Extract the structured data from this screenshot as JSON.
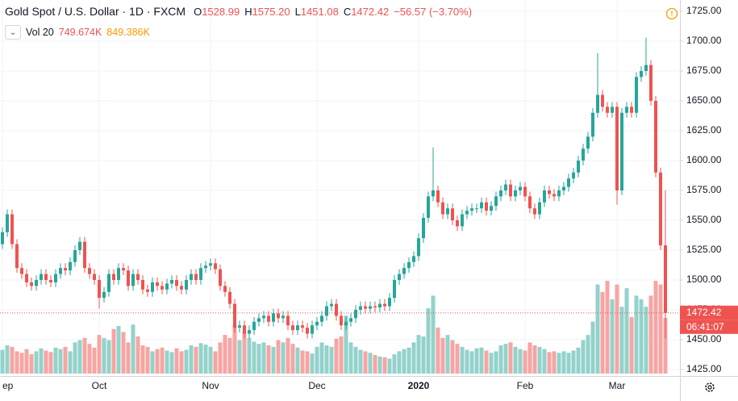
{
  "chart_data": {
    "type": "candlestick",
    "title": "Gold Spot / U.S. Dollar · 1D · FXCM",
    "ohlc_header": [
      {
        "key": "O",
        "value": "1528.99"
      },
      {
        "key": "H",
        "value": "1575.20"
      },
      {
        "key": "L",
        "value": "1451.08"
      },
      {
        "key": "C",
        "value": "1472.42"
      }
    ],
    "change": "−56.57 (−3.70%)",
    "volume_label": "Vol 20",
    "volume_values_header": [
      "749.674K",
      "849.386K"
    ],
    "last_price_label": "1472.42",
    "countdown": "06:41:07",
    "up_color": "#26a69a",
    "down_color": "#ef5350",
    "volume_up_color": "#93d2cb",
    "volume_down_color": "#f6a5a3",
    "grid": true,
    "xlim": [
      -0.5,
      140
    ],
    "xticks": [
      {
        "value": 0,
        "label": "ep"
      },
      {
        "value": 20,
        "label": "Oct"
      },
      {
        "value": 43,
        "label": "Nov"
      },
      {
        "value": 65,
        "label": "Dec"
      },
      {
        "value": 86,
        "label": "2020"
      },
      {
        "value": 108,
        "label": "Feb"
      },
      {
        "value": 127,
        "label": "Mar"
      }
    ],
    "ylim": [
      1425,
      1725
    ],
    "yticks": [
      {
        "value": 1425,
        "label": "1425.00"
      },
      {
        "value": 1450,
        "label": "1450.00"
      },
      {
        "value": 1475,
        "label": "1475.00"
      },
      {
        "value": 1500,
        "label": "1500.00"
      },
      {
        "value": 1525,
        "label": "1525.00"
      },
      {
        "value": 1550,
        "label": "1550.00"
      },
      {
        "value": 1575,
        "label": "1575.00"
      },
      {
        "value": 1600,
        "label": "1600.00"
      },
      {
        "value": 1625,
        "label": "1625.00"
      },
      {
        "value": 1650,
        "label": "1650.00"
      },
      {
        "value": 1675,
        "label": "1675.00"
      },
      {
        "value": 1700,
        "label": "1700.00"
      },
      {
        "value": 1725,
        "label": "1725.00"
      }
    ],
    "open": [
      1530,
      1540,
      1555,
      1530,
      1510,
      1505,
      1498,
      1495,
      1500,
      1505,
      1500,
      1498,
      1505,
      1510,
      1508,
      1515,
      1525,
      1532,
      1510,
      1505,
      1500,
      1485,
      1490,
      1505,
      1500,
      1510,
      1508,
      1495,
      1505,
      1500,
      1492,
      1490,
      1498,
      1495,
      1492,
      1497,
      1500,
      1495,
      1492,
      1500,
      1505,
      1500,
      1510,
      1512,
      1514,
      1509,
      1495,
      1490,
      1480,
      1460,
      1462,
      1455,
      1458,
      1465,
      1468,
      1470,
      1465,
      1472,
      1468,
      1470,
      1462,
      1458,
      1462,
      1460,
      1455,
      1462,
      1465,
      1470,
      1478,
      1480,
      1470,
      1462,
      1465,
      1468,
      1475,
      1478,
      1476,
      1478,
      1477,
      1480,
      1478,
      1485,
      1500,
      1505,
      1510,
      1515,
      1520,
      1535,
      1552,
      1570,
      1575,
      1565,
      1555,
      1560,
      1550,
      1545,
      1555,
      1558,
      1560,
      1560,
      1565,
      1558,
      1562,
      1570,
      1575,
      1580,
      1570,
      1575,
      1578,
      1570,
      1560,
      1555,
      1565,
      1575,
      1572,
      1570,
      1575,
      1578,
      1585,
      1590,
      1600,
      1610,
      1620,
      1640,
      1655,
      1645,
      1640,
      1645,
      1575,
      1640,
      1645,
      1640,
      1670,
      1675,
      1680,
      1650,
      1590,
      1528.99
    ],
    "high": [
      1544,
      1559,
      1559,
      1534,
      1514,
      1509,
      1502,
      1504,
      1509,
      1509,
      1504,
      1509,
      1514,
      1514,
      1519,
      1529,
      1536,
      1536,
      1514,
      1509,
      1504,
      1494,
      1509,
      1509,
      1514,
      1514,
      1512,
      1509,
      1509,
      1504,
      1496,
      1502,
      1502,
      1499,
      1501,
      1504,
      1504,
      1499,
      1504,
      1509,
      1509,
      1514,
      1516,
      1518,
      1518,
      1513,
      1499,
      1494,
      1484,
      1466,
      1466,
      1462,
      1469,
      1472,
      1474,
      1474,
      1476,
      1476,
      1474,
      1474,
      1466,
      1466,
      1466,
      1464,
      1466,
      1469,
      1474,
      1482,
      1484,
      1484,
      1474,
      1469,
      1472,
      1479,
      1482,
      1482,
      1482,
      1482,
      1484,
      1484,
      1489,
      1504,
      1509,
      1514,
      1519,
      1524,
      1539,
      1556,
      1574,
      1611,
      1579,
      1569,
      1564,
      1564,
      1554,
      1559,
      1562,
      1564,
      1564,
      1569,
      1569,
      1566,
      1574,
      1579,
      1584,
      1584,
      1579,
      1582,
      1582,
      1574,
      1564,
      1569,
      1579,
      1579,
      1576,
      1579,
      1582,
      1589,
      1594,
      1604,
      1614,
      1624,
      1644,
      1690,
      1659,
      1649,
      1649,
      1649,
      1644,
      1649,
      1649,
      1674,
      1679,
      1703,
      1684,
      1654,
      1594,
      1575.2
    ],
    "low": [
      1526,
      1536,
      1526,
      1506,
      1501,
      1494,
      1491,
      1491,
      1496,
      1496,
      1494,
      1494,
      1501,
      1504,
      1504,
      1511,
      1521,
      1506,
      1501,
      1496,
      1476,
      1481,
      1486,
      1496,
      1496,
      1504,
      1491,
      1491,
      1496,
      1488,
      1486,
      1486,
      1491,
      1488,
      1488,
      1493,
      1491,
      1488,
      1488,
      1496,
      1496,
      1496,
      1506,
      1508,
      1505,
      1491,
      1486,
      1476,
      1456,
      1456,
      1451,
      1451,
      1454,
      1461,
      1464,
      1461,
      1461,
      1464,
      1464,
      1458,
      1454,
      1454,
      1456,
      1451,
      1451,
      1458,
      1461,
      1466,
      1474,
      1466,
      1458,
      1458,
      1461,
      1464,
      1471,
      1472,
      1472,
      1473,
      1473,
      1474,
      1474,
      1481,
      1496,
      1501,
      1506,
      1511,
      1516,
      1531,
      1548,
      1566,
      1561,
      1551,
      1551,
      1546,
      1541,
      1541,
      1551,
      1554,
      1556,
      1556,
      1554,
      1554,
      1558,
      1566,
      1571,
      1566,
      1566,
      1571,
      1566,
      1556,
      1551,
      1551,
      1561,
      1568,
      1566,
      1566,
      1571,
      1574,
      1581,
      1586,
      1596,
      1606,
      1616,
      1636,
      1641,
      1636,
      1636,
      1563,
      1571,
      1636,
      1636,
      1636,
      1666,
      1671,
      1646,
      1586,
      1525,
      1451.08
    ],
    "close": [
      1540,
      1555,
      1530,
      1510,
      1505,
      1498,
      1495,
      1500,
      1505,
      1500,
      1498,
      1505,
      1510,
      1508,
      1515,
      1525,
      1532,
      1510,
      1505,
      1500,
      1485,
      1490,
      1505,
      1500,
      1510,
      1508,
      1495,
      1505,
      1500,
      1492,
      1490,
      1498,
      1495,
      1492,
      1497,
      1500,
      1495,
      1492,
      1500,
      1505,
      1500,
      1510,
      1512,
      1514,
      1509,
      1495,
      1490,
      1480,
      1460,
      1462,
      1455,
      1458,
      1465,
      1468,
      1470,
      1465,
      1472,
      1468,
      1470,
      1462,
      1458,
      1462,
      1460,
      1455,
      1462,
      1465,
      1470,
      1478,
      1480,
      1470,
      1462,
      1465,
      1468,
      1475,
      1478,
      1476,
      1478,
      1477,
      1480,
      1478,
      1485,
      1500,
      1505,
      1510,
      1515,
      1520,
      1535,
      1552,
      1570,
      1575,
      1565,
      1555,
      1560,
      1550,
      1545,
      1555,
      1558,
      1560,
      1560,
      1565,
      1558,
      1562,
      1570,
      1575,
      1580,
      1570,
      1575,
      1578,
      1570,
      1560,
      1555,
      1565,
      1575,
      1572,
      1570,
      1575,
      1578,
      1585,
      1590,
      1600,
      1610,
      1620,
      1640,
      1655,
      1645,
      1640,
      1645,
      1575,
      1640,
      1645,
      1640,
      1670,
      1675,
      1680,
      1650,
      1590,
      1528.99,
      1472.42
    ],
    "volume": [
      320,
      380,
      360,
      300,
      280,
      330,
      260,
      300,
      340,
      310,
      290,
      350,
      330,
      360,
      300,
      420,
      450,
      480,
      400,
      350,
      520,
      480,
      450,
      600,
      640,
      560,
      420,
      660,
      500,
      380,
      360,
      300,
      330,
      350,
      310,
      290,
      340,
      300,
      320,
      380,
      360,
      410,
      390,
      360,
      300,
      420,
      520,
      480,
      660,
      450,
      560,
      480,
      430,
      400,
      420,
      380,
      360,
      450,
      420,
      480,
      400,
      350,
      310,
      300,
      270,
      360,
      420,
      380,
      360,
      470,
      500,
      780,
      420,
      360,
      320,
      300,
      280,
      250,
      230,
      220,
      200,
      260,
      300,
      330,
      350,
      420,
      520,
      500,
      880,
      1050,
      620,
      480,
      520,
      450,
      400,
      360,
      320,
      300,
      340,
      350,
      310,
      280,
      300,
      380,
      400,
      420,
      360,
      330,
      310,
      420,
      380,
      360,
      330,
      290,
      300,
      280,
      300,
      280,
      310,
      350,
      450,
      520,
      700,
      1200,
      1100,
      1250,
      1000,
      1200,
      900,
      1150,
      760,
      1050,
      1000,
      900,
      1050,
      1250,
      1200,
      749.674
    ]
  }
}
